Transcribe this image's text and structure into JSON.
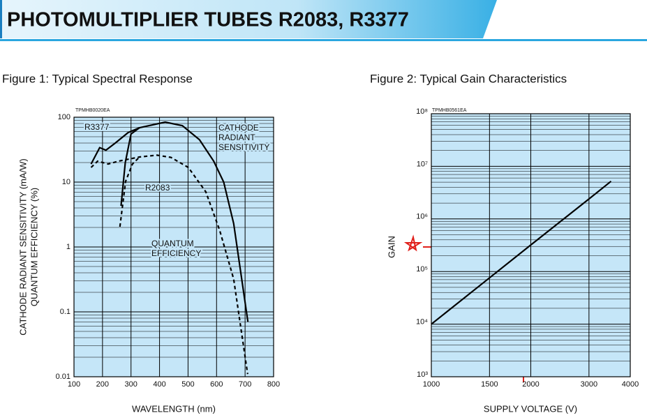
{
  "header": {
    "title": "PHOTOMULTIPLIER TUBES R2083, R3377"
  },
  "chart_data": [
    {
      "type": "line",
      "title": "Figure 1: Typical Spectral Response",
      "code": "TPMHB0020EA",
      "xlabel": "WAVELENGTH (nm)",
      "ylabel": [
        "CATHODE RADIANT SENSITIVITY (mA/W)",
        "QUANTUM EFFICIENCY (%)"
      ],
      "xlim": [
        100,
        800
      ],
      "xticks": [
        100,
        200,
        300,
        400,
        500,
        600,
        700,
        800
      ],
      "ylim": [
        0.01,
        100
      ],
      "yticks": [
        0.01,
        0.1,
        1,
        10,
        100
      ],
      "ylog": true,
      "grid": true,
      "minor_grid": true,
      "background": "#c5e6f8",
      "series": [
        {
          "color": "#000000",
          "dashed": false,
          "x": [
            160,
            190,
            212,
            245,
            290,
            330,
            420,
            480,
            540,
            590,
            625,
            660,
            710
          ],
          "values": [
            19,
            34,
            31,
            40,
            58,
            69,
            84,
            74,
            45,
            21,
            10,
            2.3,
            0.07
          ]
        },
        {
          "color": "#000000",
          "dashed": false,
          "x": [
            265,
            280,
            300,
            330
          ],
          "values": [
            4.3,
            20,
            55,
            69
          ]
        },
        {
          "color": "#000000",
          "dashed": true,
          "x": [
            160,
            183,
            220,
            256,
            330,
            391,
            440,
            501,
            562,
            611,
            660,
            709
          ],
          "values": [
            16.8,
            21,
            19,
            21,
            24.4,
            26,
            24,
            16.8,
            7.1,
            1.8,
            0.32,
            0.011
          ]
        },
        {
          "color": "#000000",
          "dashed": true,
          "x": [
            261,
            281,
            305,
            330
          ],
          "values": [
            2.05,
            10.3,
            19,
            24.4
          ]
        }
      ],
      "annotations": [
        [
          "R3377"
        ],
        [
          "R2083"
        ],
        [
          "CATHODE",
          "RADIANT",
          "SENSITIVITY"
        ],
        [
          "QUANTUM",
          "EFFICIENCY"
        ]
      ]
    },
    {
      "type": "line",
      "title": "Figure 2: Typical Gain Characteristics",
      "code": "TPMHB0561EA",
      "xlabel": "SUPPLY VOLTAGE (V)",
      "ylabel": [
        "GAIN"
      ],
      "xlim": [
        1000,
        4000
      ],
      "xticks": [
        1000,
        1500,
        2000,
        3000,
        4000
      ],
      "xlog": true,
      "ylim": [
        1000,
        100000000
      ],
      "yticks": [
        {
          "value": 1000,
          "label": "10³"
        },
        {
          "value": 10000,
          "label": "10⁴"
        },
        {
          "value": 100000,
          "label": "10⁵"
        },
        {
          "value": 1000000,
          "label": "10⁶"
        },
        {
          "value": 10000000,
          "label": "10⁷"
        },
        {
          "value": 100000000,
          "label": "10⁸"
        }
      ],
      "ylog": true,
      "grid": true,
      "minor_grid": true,
      "background": "#c5e6f8",
      "series": [
        {
          "color": "#000000",
          "dashed": false,
          "x": [
            1000,
            1500,
            2000,
            3000,
            3500
          ],
          "values": [
            10000,
            76000,
            320000,
            2400000,
            5200000
          ]
        }
      ],
      "annotations": []
    }
  ]
}
